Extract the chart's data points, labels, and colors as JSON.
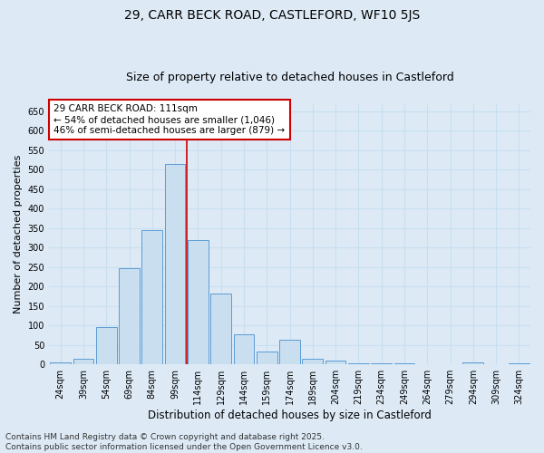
{
  "title": "29, CARR BECK ROAD, CASTLEFORD, WF10 5JS",
  "subtitle": "Size of property relative to detached houses in Castleford",
  "xlabel": "Distribution of detached houses by size in Castleford",
  "ylabel": "Number of detached properties",
  "categories": [
    "24sqm",
    "39sqm",
    "54sqm",
    "69sqm",
    "84sqm",
    "99sqm",
    "114sqm",
    "129sqm",
    "144sqm",
    "159sqm",
    "174sqm",
    "189sqm",
    "204sqm",
    "219sqm",
    "234sqm",
    "249sqm",
    "264sqm",
    "279sqm",
    "294sqm",
    "309sqm",
    "324sqm"
  ],
  "values": [
    5,
    15,
    95,
    248,
    345,
    515,
    320,
    182,
    78,
    33,
    63,
    15,
    10,
    3,
    2,
    2,
    0,
    0,
    5,
    0,
    2
  ],
  "bar_color": "#c9dff0",
  "bar_edge_color": "#5b9bd5",
  "grid_color": "#c8dff0",
  "background_color": "#ddeaf6",
  "annotation_text": "29 CARR BECK ROAD: 111sqm\n← 54% of detached houses are smaller (1,046)\n46% of semi-detached houses are larger (879) →",
  "annotation_box_color": "#ffffff",
  "annotation_box_edge": "#cc0000",
  "vline_index": 5.5,
  "vline_color": "#cc0000",
  "ylim": [
    0,
    670
  ],
  "yticks": [
    0,
    50,
    100,
    150,
    200,
    250,
    300,
    350,
    400,
    450,
    500,
    550,
    600,
    650
  ],
  "footnote": "Contains HM Land Registry data © Crown copyright and database right 2025.\nContains public sector information licensed under the Open Government Licence v3.0.",
  "title_fontsize": 10,
  "subtitle_fontsize": 9,
  "xlabel_fontsize": 8.5,
  "ylabel_fontsize": 8,
  "tick_fontsize": 7,
  "annotation_fontsize": 7.5,
  "footnote_fontsize": 6.5
}
